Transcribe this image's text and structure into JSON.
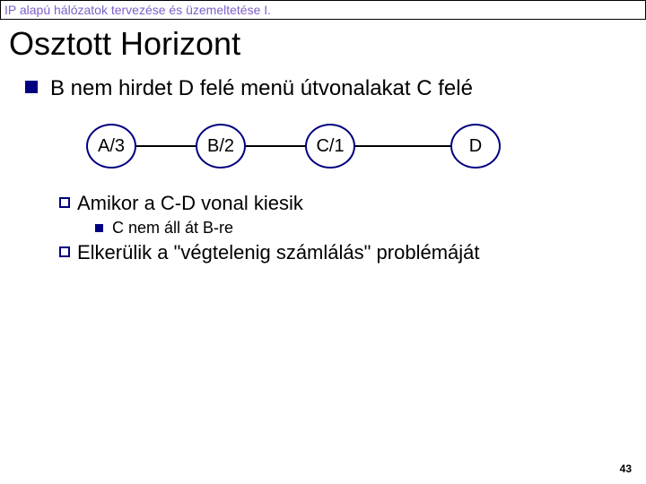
{
  "header": "IP alapú hálózatok tervezése és üzemeltetése I.",
  "title": "Osztott Horizont",
  "bullet1": "B nem hirdet  D felé menü útvonalakat C felé",
  "diagram": {
    "nodes": [
      "A/3",
      "B/2",
      "C/1",
      "D"
    ],
    "node_border": "#000080",
    "edge_color": "#000000"
  },
  "sub1": {
    "prefix": "Amikor",
    "rest": " a C-D vonal kiesik"
  },
  "subsub1": "C nem áll át  B-re",
  "sub2": {
    "prefix": "Elkerülik",
    "rest": " a \"végtelenig számlálás\" problémáját"
  },
  "page": "43",
  "colors": {
    "header_text": "#7d5fc9",
    "bullet": "#000080"
  }
}
